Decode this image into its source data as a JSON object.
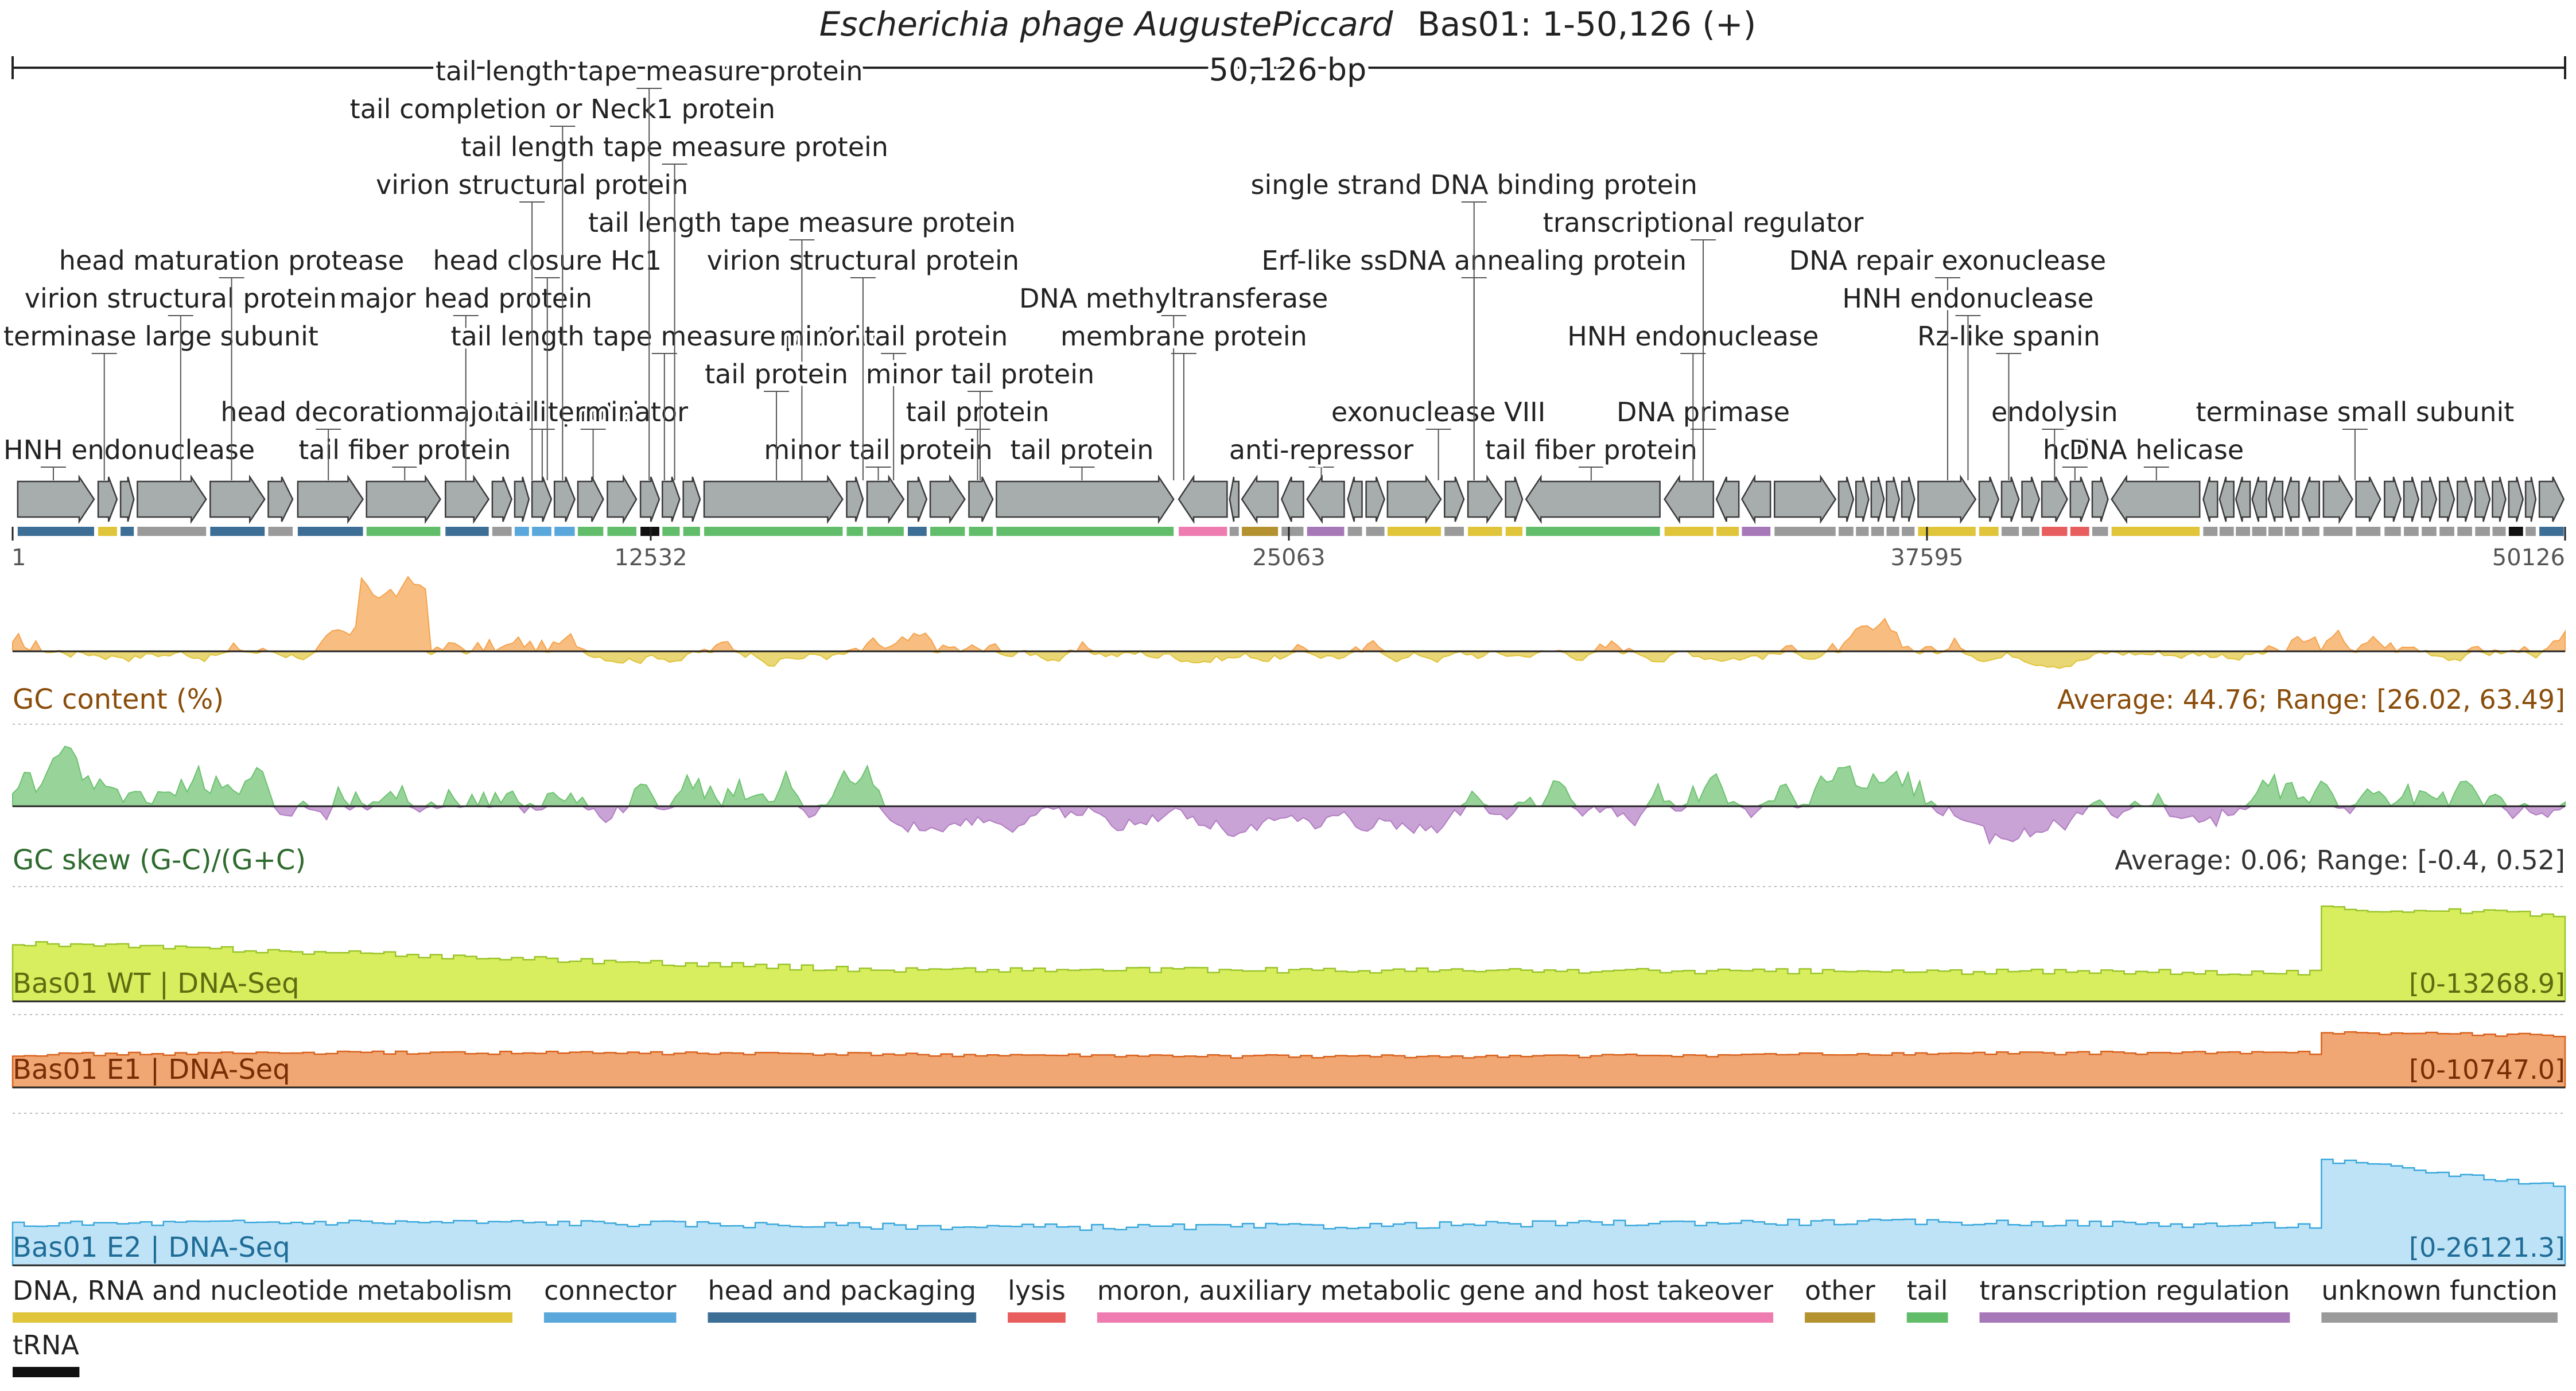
{
  "header": {
    "title_italic": "Escherichia phage AugustePiccard",
    "title_rest": "Bas01: 1-50,126 (+)",
    "length_label": "50,126 bp"
  },
  "genome_length": 50126,
  "axis_ticks": [
    "1",
    "12532",
    "25063",
    "37595",
    "50126"
  ],
  "genes": [
    {
      "start": 100,
      "end": 1600,
      "strand": "+",
      "category": "head and packaging"
    },
    {
      "start": 1680,
      "end": 2050,
      "strand": "+",
      "category": "DNA, RNA and nucleotide metabolism"
    },
    {
      "start": 2120,
      "end": 2380,
      "strand": "+",
      "category": "head and packaging"
    },
    {
      "start": 2450,
      "end": 3800,
      "strand": "+",
      "category": "unknown function"
    },
    {
      "start": 3880,
      "end": 4950,
      "strand": "+",
      "category": "head and packaging"
    },
    {
      "start": 5020,
      "end": 5500,
      "strand": "+",
      "category": "unknown function"
    },
    {
      "start": 5600,
      "end": 6880,
      "strand": "+",
      "category": "head and packaging"
    },
    {
      "start": 6950,
      "end": 8400,
      "strand": "+",
      "category": "tail"
    },
    {
      "start": 8500,
      "end": 9350,
      "strand": "+",
      "category": "head and packaging"
    },
    {
      "start": 9420,
      "end": 9800,
      "strand": "+",
      "category": "unknown function"
    },
    {
      "start": 9860,
      "end": 10140,
      "strand": "+",
      "category": "connector"
    },
    {
      "start": 10200,
      "end": 10580,
      "strand": "+",
      "category": "connector"
    },
    {
      "start": 10640,
      "end": 11040,
      "strand": "+",
      "category": "connector"
    },
    {
      "start": 11100,
      "end": 11600,
      "strand": "+",
      "category": "tail"
    },
    {
      "start": 11680,
      "end": 12250,
      "strand": "+",
      "category": "tail"
    },
    {
      "start": 12330,
      "end": 12700,
      "strand": "+",
      "category": "tRNA"
    },
    {
      "start": 12760,
      "end": 13100,
      "strand": "+",
      "category": "tail"
    },
    {
      "start": 13170,
      "end": 13500,
      "strand": "+",
      "category": "tail"
    },
    {
      "start": 13580,
      "end": 16300,
      "strand": "+",
      "category": "tail"
    },
    {
      "start": 16380,
      "end": 16700,
      "strand": "+",
      "category": "tail"
    },
    {
      "start": 16780,
      "end": 17500,
      "strand": "+",
      "category": "tail"
    },
    {
      "start": 17580,
      "end": 17950,
      "strand": "+",
      "category": "head and packaging"
    },
    {
      "start": 18020,
      "end": 18700,
      "strand": "+",
      "category": "tail"
    },
    {
      "start": 18780,
      "end": 19250,
      "strand": "+",
      "category": "tail"
    },
    {
      "start": 19320,
      "end": 22800,
      "strand": "+",
      "category": "tail"
    },
    {
      "start": 22900,
      "end": 23850,
      "strand": "-",
      "category": "moron, auxiliary metabolic gene and host takeover"
    },
    {
      "start": 23900,
      "end": 24080,
      "strand": "-",
      "category": "unknown function"
    },
    {
      "start": 24140,
      "end": 24850,
      "strand": "-",
      "category": "other"
    },
    {
      "start": 24920,
      "end": 25350,
      "strand": "-",
      "category": "unknown function"
    },
    {
      "start": 25420,
      "end": 26150,
      "strand": "-",
      "category": "transcription regulation"
    },
    {
      "start": 26220,
      "end": 26500,
      "strand": "-",
      "category": "unknown function"
    },
    {
      "start": 26580,
      "end": 26940,
      "strand": "+",
      "category": "unknown function"
    },
    {
      "start": 27000,
      "end": 28050,
      "strand": "+",
      "category": "DNA, RNA and nucleotide metabolism"
    },
    {
      "start": 28120,
      "end": 28500,
      "strand": "+",
      "category": "unknown function"
    },
    {
      "start": 28580,
      "end": 29250,
      "strand": "+",
      "category": "DNA, RNA and nucleotide metabolism"
    },
    {
      "start": 29320,
      "end": 29650,
      "strand": "+",
      "category": "DNA, RNA and nucleotide metabolism"
    },
    {
      "start": 29720,
      "end": 32350,
      "strand": "-",
      "category": "tail"
    },
    {
      "start": 32440,
      "end": 33400,
      "strand": "-",
      "category": "DNA, RNA and nucleotide metabolism"
    },
    {
      "start": 33460,
      "end": 33900,
      "strand": "-",
      "category": "DNA, RNA and nucleotide metabolism"
    },
    {
      "start": 33960,
      "end": 34520,
      "strand": "-",
      "category": "transcription regulation"
    },
    {
      "start": 34600,
      "end": 35800,
      "strand": "+",
      "category": "unknown function"
    },
    {
      "start": 35860,
      "end": 36150,
      "strand": "+",
      "category": "unknown function"
    },
    {
      "start": 36200,
      "end": 36450,
      "strand": "+",
      "category": "unknown function"
    },
    {
      "start": 36500,
      "end": 36750,
      "strand": "+",
      "category": "unknown function"
    },
    {
      "start": 36800,
      "end": 37050,
      "strand": "+",
      "category": "unknown function"
    },
    {
      "start": 37100,
      "end": 37350,
      "strand": "+",
      "category": "unknown function"
    },
    {
      "start": 37420,
      "end": 38550,
      "strand": "+",
      "category": "DNA, RNA and nucleotide metabolism"
    },
    {
      "start": 38620,
      "end": 39000,
      "strand": "+",
      "category": "DNA, RNA and nucleotide metabolism"
    },
    {
      "start": 39060,
      "end": 39400,
      "strand": "+",
      "category": "unknown function"
    },
    {
      "start": 39460,
      "end": 39800,
      "strand": "+",
      "category": "unknown function"
    },
    {
      "start": 39850,
      "end": 40350,
      "strand": "+",
      "category": "lysis"
    },
    {
      "start": 40410,
      "end": 40780,
      "strand": "+",
      "category": "lysis"
    },
    {
      "start": 40840,
      "end": 41150,
      "strand": "+",
      "category": "unknown function"
    },
    {
      "start": 41220,
      "end": 42950,
      "strand": "-",
      "category": "DNA, RNA and nucleotide metabolism"
    },
    {
      "start": 43020,
      "end": 43300,
      "strand": "-",
      "category": "unknown function"
    },
    {
      "start": 43340,
      "end": 43620,
      "strand": "-",
      "category": "unknown function"
    },
    {
      "start": 43660,
      "end": 43940,
      "strand": "-",
      "category": "unknown function"
    },
    {
      "start": 43980,
      "end": 44260,
      "strand": "-",
      "category": "unknown function"
    },
    {
      "start": 44300,
      "end": 44580,
      "strand": "-",
      "category": "unknown function"
    },
    {
      "start": 44620,
      "end": 44900,
      "strand": "-",
      "category": "unknown function"
    },
    {
      "start": 44960,
      "end": 45300,
      "strand": "-",
      "category": "unknown function"
    },
    {
      "start": 45380,
      "end": 45950,
      "strand": "+",
      "category": "unknown function"
    },
    {
      "start": 46020,
      "end": 46500,
      "strand": "+",
      "category": "unknown function"
    },
    {
      "start": 46580,
      "end": 46900,
      "strand": "+",
      "category": "unknown function"
    },
    {
      "start": 46960,
      "end": 47250,
      "strand": "+",
      "category": "unknown function"
    },
    {
      "start": 47310,
      "end": 47600,
      "strand": "+",
      "category": "unknown function"
    },
    {
      "start": 47660,
      "end": 47950,
      "strand": "+",
      "category": "unknown function"
    },
    {
      "start": 48010,
      "end": 48300,
      "strand": "+",
      "category": "unknown function"
    },
    {
      "start": 48360,
      "end": 48650,
      "strand": "+",
      "category": "unknown function"
    },
    {
      "start": 48700,
      "end": 48960,
      "strand": "+",
      "category": "unknown function"
    },
    {
      "start": 49020,
      "end": 49300,
      "strand": "+",
      "category": "tRNA"
    },
    {
      "start": 49350,
      "end": 49550,
      "strand": "+",
      "category": "unknown function"
    },
    {
      "start": 49620,
      "end": 50100,
      "strand": "+",
      "category": "head and packaging"
    }
  ],
  "gene_labels": [
    {
      "text": "HNH endonuclease",
      "row": 0,
      "pos": 800
    },
    {
      "text": "tail fiber protein",
      "row": 0,
      "pos": 7700
    },
    {
      "text": "major tail protein",
      "row": 1,
      "pos": 10400
    },
    {
      "text": "minor tail protein",
      "row": 0,
      "pos": 17000
    },
    {
      "text": "tail protein",
      "row": 0,
      "pos": 21000
    },
    {
      "text": "anti-repressor",
      "row": 0,
      "pos": 25700
    },
    {
      "text": "tail fiber protein",
      "row": 0,
      "pos": 31000
    },
    {
      "text": "holin",
      "row": 0,
      "pos": 40500
    },
    {
      "text": "DNA helicase",
      "row": 0,
      "pos": 42100
    },
    {
      "text": "terminase large subunit",
      "row": 3,
      "pos": 1800
    },
    {
      "text": "head decoration",
      "row": 1,
      "pos": 6200
    },
    {
      "text": "tail terminator",
      "row": 1,
      "pos": 11400
    },
    {
      "text": "tail protein",
      "row": 1,
      "pos": 18950
    },
    {
      "text": "exonuclease VIII",
      "row": 1,
      "pos": 28000
    },
    {
      "text": "DNA primase",
      "row": 1,
      "pos": 33200
    },
    {
      "text": "endolysin",
      "row": 1,
      "pos": 40100
    },
    {
      "text": "terminase small subunit",
      "row": 1,
      "pos": 46000
    },
    {
      "text": "virion structural protein",
      "row": 4,
      "pos": 3300
    },
    {
      "text": "major head protein",
      "row": 4,
      "pos": 8900
    },
    {
      "text": "tail length tape measure protein",
      "row": 3,
      "pos": 12800
    },
    {
      "text": "minor tail protein",
      "row": 3,
      "pos": 17300
    },
    {
      "text": "DNA methyltransferase",
      "row": 4,
      "pos": 22800
    },
    {
      "text": "HNH endonuclease",
      "row": 3,
      "pos": 33000
    },
    {
      "text": "Rz-like spanin",
      "row": 3,
      "pos": 39200
    },
    {
      "text": "head maturation protease",
      "row": 5,
      "pos": 4300
    },
    {
      "text": "head closure Hc1",
      "row": 5,
      "pos": 10500
    },
    {
      "text": "virion structural protein",
      "row": 5,
      "pos": 16700
    },
    {
      "text": "Erf-like ssDNA annealing protein",
      "row": 5,
      "pos": 28700
    },
    {
      "text": "DNA repair exonuclease",
      "row": 5,
      "pos": 38000
    },
    {
      "text": "tail length tape measure protein",
      "row": 6,
      "pos": 15500
    },
    {
      "text": "transcriptional regulator",
      "row": 6,
      "pos": 33200
    },
    {
      "text": "HNH endonuclease",
      "row": 4,
      "pos": 38400
    },
    {
      "text": "membrane protein",
      "row": 3,
      "pos": 23000
    },
    {
      "text": "minor tail protein",
      "row": 2,
      "pos": 19000
    },
    {
      "text": "tail protein",
      "row": 2,
      "pos": 15000
    },
    {
      "text": "single strand DNA binding protein",
      "row": 7,
      "pos": 28700
    },
    {
      "text": "virion structural protein",
      "row": 7,
      "pos": 10200
    },
    {
      "text": "tail length tape measure protein",
      "row": 8,
      "pos": 13000
    },
    {
      "text": "tail completion or Neck1 protein",
      "row": 9,
      "pos": 10800
    },
    {
      "text": "tail length tape measure protein",
      "row": 10,
      "pos": 12500
    }
  ],
  "tracks": [
    {
      "key": "gc",
      "label": "GC content (%)",
      "stats": "Average: 44.76; Range: [26.02, 63.49]",
      "average": 44.76,
      "min": 26.02,
      "max": 63.49,
      "color": "#f5a24b",
      "color_neg": "#e0c43a"
    },
    {
      "key": "skew",
      "label": "GC skew (G-C)/(G+C)",
      "stats": "Average: 0.06; Range: [-0.4, 0.52]",
      "average": 0.06,
      "min": -0.4,
      "max": 0.52,
      "color": "#6cc26f",
      "color_neg": "#b27cc3"
    },
    {
      "key": "wt",
      "label": "Bas01 WT | DNA-Seq",
      "stats": "[0-13268.9]",
      "max": 13268.9,
      "color": "#d8ee5e",
      "line": "#9ac42a"
    },
    {
      "key": "e1",
      "label": "Bas01 E1 | DNA-Seq",
      "stats": "[0-10747.0]",
      "max": 10747.0,
      "color": "#f0a773",
      "line": "#d9621e"
    },
    {
      "key": "e2",
      "label": "Bas01 E2 | DNA-Seq",
      "stats": "[0-26121.3]",
      "max": 26121.3,
      "color": "#bfe3f6",
      "line": "#39a8dc"
    }
  ],
  "legend": [
    {
      "label": "DNA, RNA and nucleotide metabolism",
      "color": "#e0c43a"
    },
    {
      "label": "connector",
      "color": "#5aa7dc"
    },
    {
      "label": "head and packaging",
      "color": "#3d6f96"
    },
    {
      "label": "lysis",
      "color": "#e85d5d"
    },
    {
      "label": "moron, auxiliary metabolic gene and host takeover",
      "color": "#ef7cb0"
    },
    {
      "label": "other",
      "color": "#b3922f"
    },
    {
      "label": "tail",
      "color": "#62bd6b"
    },
    {
      "label": "transcription regulation",
      "color": "#a678b8"
    },
    {
      "label": "unknown function",
      "color": "#9a9a9a"
    },
    {
      "label": "tRNA",
      "color": "#111111"
    }
  ]
}
